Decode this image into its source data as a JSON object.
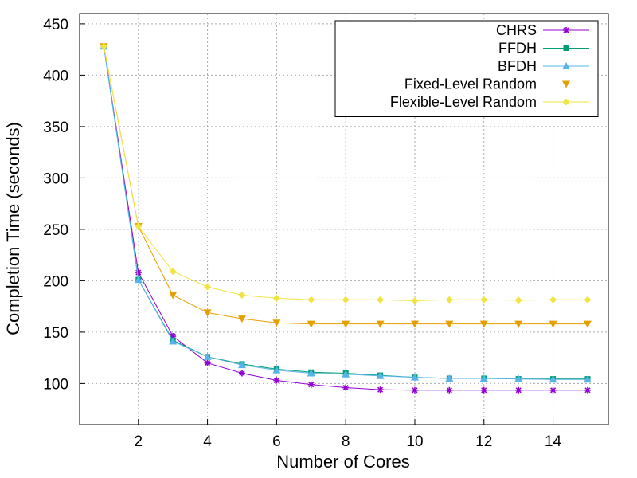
{
  "chart_data": {
    "type": "line",
    "title": "",
    "xlabel": "Number of Cores",
    "ylabel": "Completion Time (seconds)",
    "xlim": [
      0.3,
      15.6
    ],
    "ylim": [
      60,
      460
    ],
    "xticks": [
      2,
      4,
      6,
      8,
      10,
      12,
      14
    ],
    "yticks": [
      100,
      150,
      200,
      250,
      300,
      350,
      400,
      450
    ],
    "grid": true,
    "legend_position": "top-right",
    "x": [
      1,
      2,
      3,
      4,
      5,
      6,
      7,
      8,
      9,
      10,
      11,
      12,
      13,
      14,
      15
    ],
    "series": [
      {
        "name": "CHRS",
        "color": "#9400d3",
        "marker": "plus-x",
        "values": [
          428,
          208,
          146,
          120,
          110,
          103,
          99,
          96,
          94,
          93.5,
          93.5,
          93.5,
          93.5,
          93.5,
          93.5
        ]
      },
      {
        "name": "FFDH",
        "color": "#009e73",
        "marker": "square",
        "values": [
          428,
          201,
          142,
          126,
          119,
          114,
          111,
          110,
          108,
          106,
          105,
          105,
          104.5,
          104.5,
          104.5
        ]
      },
      {
        "name": "BFDH",
        "color": "#56b4e9",
        "marker": "triangle",
        "values": [
          428,
          201,
          141,
          126,
          118,
          113,
          110,
          109,
          107.5,
          106,
          105,
          105,
          104.5,
          104,
          104
        ]
      },
      {
        "name": "Fixed-Level Random",
        "color": "#e69f00",
        "marker": "triangle-down",
        "values": [
          428,
          253,
          186,
          169,
          163,
          159,
          158,
          158,
          158,
          158,
          158,
          158,
          158,
          158,
          158
        ]
      },
      {
        "name": "Flexible-Level Random",
        "color": "#f0e442",
        "marker": "diamond",
        "values": [
          428,
          253,
          209,
          194,
          186,
          183,
          181.5,
          181.5,
          181.5,
          180.5,
          181.5,
          181.5,
          181,
          181.5,
          181.5
        ]
      }
    ]
  }
}
